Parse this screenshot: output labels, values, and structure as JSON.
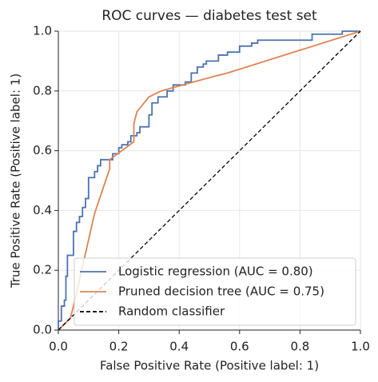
{
  "chart_data": {
    "type": "line",
    "title": "ROC curves — diabetes test set",
    "xlabel": "False Positive Rate (Positive label: 1)",
    "ylabel": "True Positive Rate (Positive label: 1)",
    "xlim": [
      0,
      1
    ],
    "ylim": [
      0,
      1
    ],
    "xticks": [
      {
        "value": 0,
        "label": "0.0"
      },
      {
        "value": 0.2,
        "label": "0.2"
      },
      {
        "value": 0.4,
        "label": "0.4"
      },
      {
        "value": 0.6,
        "label": "0.6"
      },
      {
        "value": 0.8,
        "label": "0.8"
      },
      {
        "value": 1,
        "label": "1.0"
      }
    ],
    "yticks": [
      {
        "value": 0,
        "label": "0.0"
      },
      {
        "value": 0.2,
        "label": "0.2"
      },
      {
        "value": 0.4,
        "label": "0.4"
      },
      {
        "value": 0.6,
        "label": "0.6"
      },
      {
        "value": 0.8,
        "label": "0.8"
      },
      {
        "value": 1,
        "label": "1.0"
      }
    ],
    "grid": true,
    "legend": "lower right",
    "series": [
      {
        "name": "Logistic regression (AUC = 0.80)",
        "color": "#4c72b0",
        "linestyle": "solid",
        "x": [
          0,
          0,
          0.01,
          0.01,
          0.02,
          0.02,
          0.025,
          0.025,
          0.03,
          0.03,
          0.05,
          0.05,
          0.06,
          0.06,
          0.07,
          0.07,
          0.08,
          0.08,
          0.09,
          0.09,
          0.1,
          0.1,
          0.12,
          0.12,
          0.13,
          0.13,
          0.14,
          0.14,
          0.18,
          0.18,
          0.2,
          0.2,
          0.21,
          0.21,
          0.23,
          0.23,
          0.24,
          0.24,
          0.26,
          0.26,
          0.27,
          0.27,
          0.3,
          0.3,
          0.31,
          0.31,
          0.33,
          0.33,
          0.36,
          0.36,
          0.38,
          0.38,
          0.42,
          0.42,
          0.44,
          0.44,
          0.46,
          0.46,
          0.48,
          0.48,
          0.49,
          0.49,
          0.53,
          0.53,
          0.56,
          0.56,
          0.6,
          0.6,
          0.64,
          0.64,
          0.66,
          0.66,
          0.84,
          0.84,
          0.94,
          0.94,
          1
        ],
        "values": [
          0,
          0.03,
          0.03,
          0.08,
          0.08,
          0.1,
          0.1,
          0.18,
          0.18,
          0.25,
          0.25,
          0.33,
          0.33,
          0.36,
          0.36,
          0.38,
          0.38,
          0.41,
          0.41,
          0.44,
          0.44,
          0.51,
          0.51,
          0.53,
          0.53,
          0.55,
          0.55,
          0.57,
          0.57,
          0.59,
          0.59,
          0.61,
          0.61,
          0.62,
          0.62,
          0.63,
          0.63,
          0.65,
          0.65,
          0.66,
          0.66,
          0.68,
          0.68,
          0.72,
          0.72,
          0.76,
          0.76,
          0.78,
          0.78,
          0.8,
          0.8,
          0.82,
          0.82,
          0.83,
          0.83,
          0.86,
          0.86,
          0.88,
          0.88,
          0.89,
          0.89,
          0.9,
          0.9,
          0.92,
          0.92,
          0.93,
          0.93,
          0.95,
          0.95,
          0.96,
          0.96,
          0.97,
          0.97,
          0.99,
          0.99,
          1,
          1
        ]
      },
      {
        "name": "Pruned decision tree (AUC = 0.75)",
        "color": "#dd8452",
        "linestyle": "solid",
        "x": [
          0,
          0.04,
          0.05,
          0.12,
          0.17,
          0.17,
          0.25,
          0.25,
          0.26,
          0.3,
          0.34,
          0.52,
          0.56,
          1
        ],
        "values": [
          0,
          0.04,
          0.08,
          0.39,
          0.54,
          0.57,
          0.63,
          0.69,
          0.73,
          0.78,
          0.8,
          0.85,
          0.86,
          1
        ]
      },
      {
        "name": "Random classifier",
        "color": "#000000",
        "linestyle": "dashed",
        "x": [
          0,
          1
        ],
        "values": [
          0,
          1
        ]
      }
    ]
  }
}
